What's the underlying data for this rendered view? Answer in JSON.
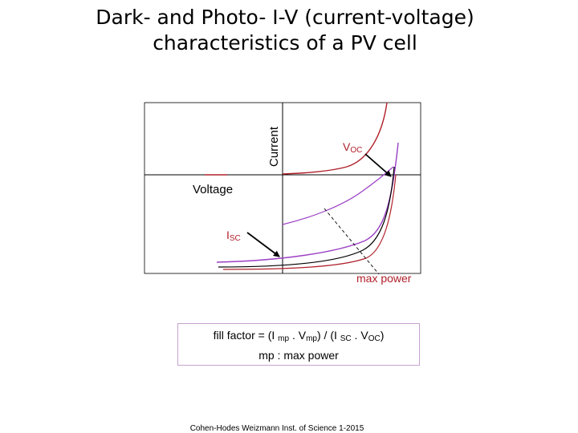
{
  "title": {
    "line1": "Dark- and Photo- I-V (current-voltage)",
    "line2": "characteristics of a PV cell"
  },
  "axes": {
    "current_label": "Current",
    "voltage_label": "Voltage"
  },
  "annotations": {
    "voc_main": "V",
    "voc_sub": "OC",
    "isc_main": "I",
    "isc_sub": "SC",
    "max_power": "max power"
  },
  "fill_factor": {
    "p1": "fill factor = (I ",
    "s1": "mp",
    "p2": " . V",
    "s2": "mp",
    "p3": ") / (I ",
    "s3": "SC",
    "p4": " . V",
    "s4": "OC",
    "p5": ")",
    "line2": "mp : max power"
  },
  "credit": "Cohen-Hodes Weizmann Inst. of Science 1-2015",
  "colors": {
    "dark_curve": "#b0202a",
    "photo_curve": "#9b3fc4",
    "mid_curve": "#000000",
    "box_border": "#c7a2cf"
  }
}
